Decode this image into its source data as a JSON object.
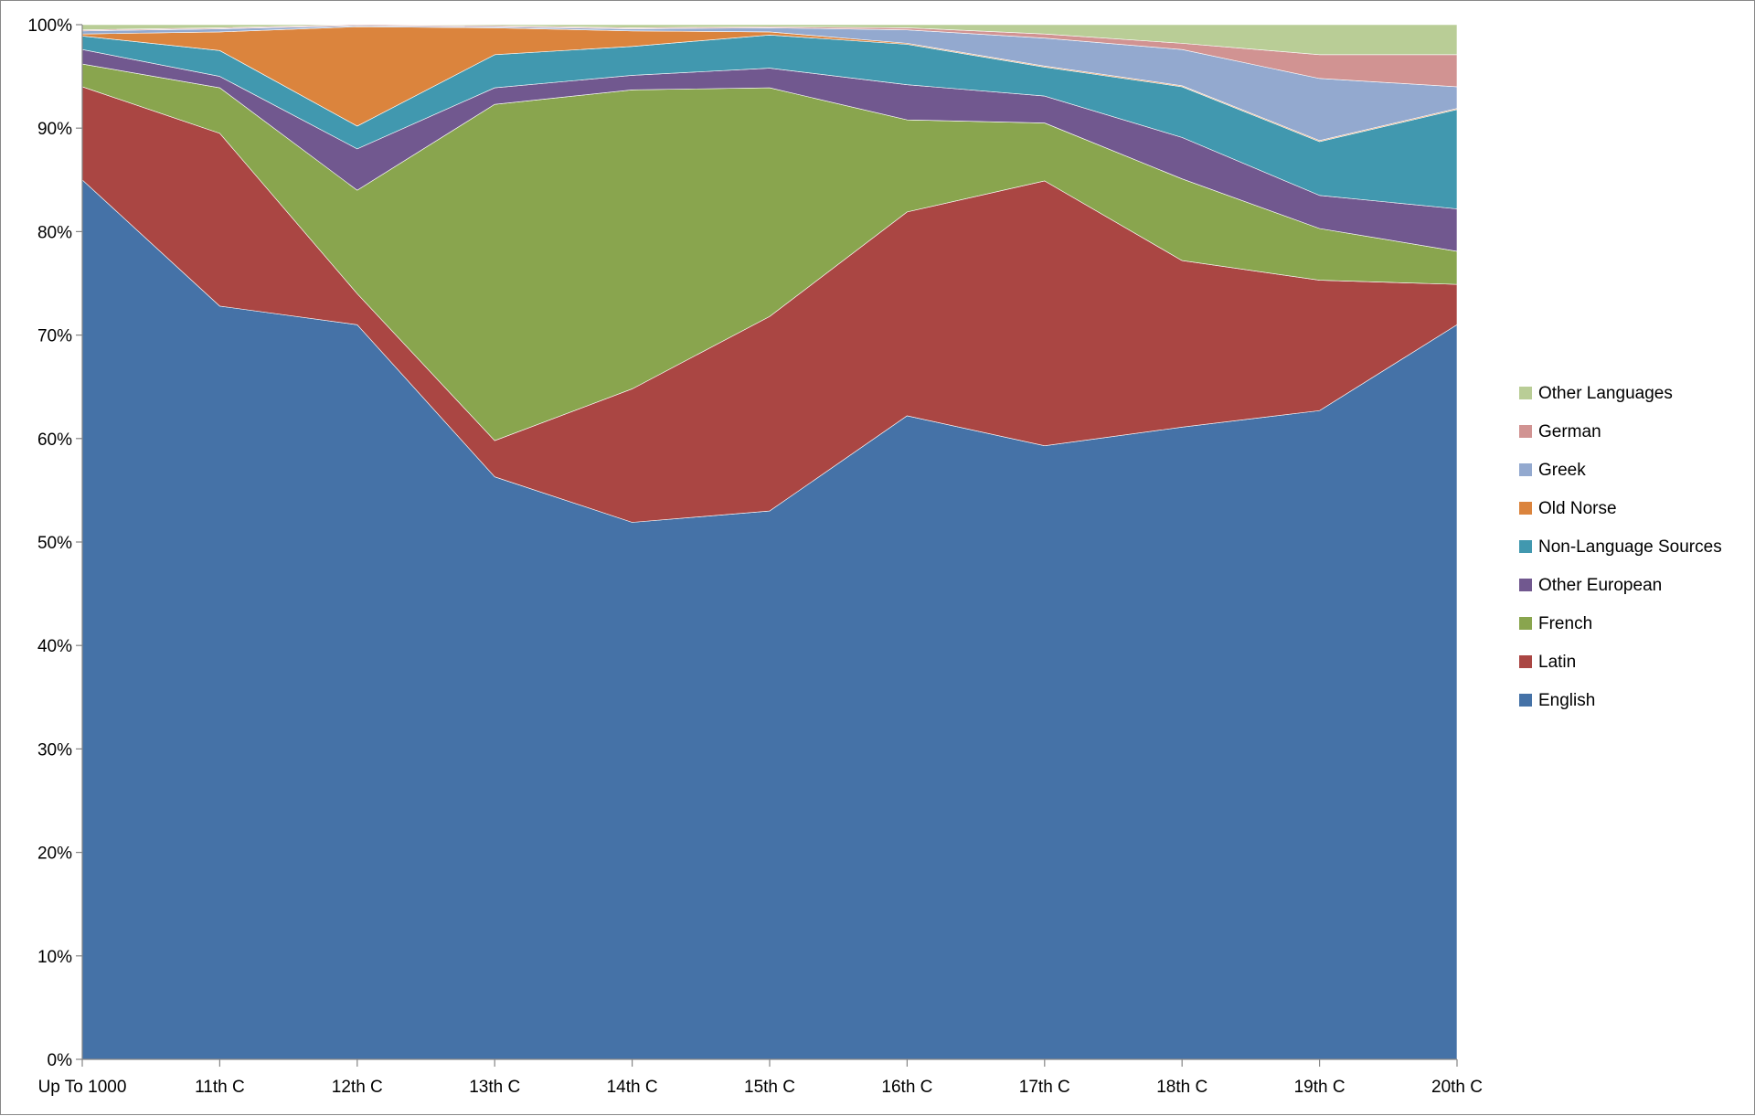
{
  "chart_data": {
    "type": "area",
    "stacked": "percent",
    "title": "",
    "xlabel": "",
    "ylabel": "",
    "ylim": [
      0,
      100
    ],
    "y_ticks": [
      "0%",
      "10%",
      "20%",
      "30%",
      "40%",
      "50%",
      "60%",
      "70%",
      "80%",
      "90%",
      "100%"
    ],
    "grid": false,
    "legend_position": "right",
    "categories": [
      "Up To 1000",
      "11th C",
      "12th C",
      "13th C",
      "14th C",
      "15th C",
      "16th C",
      "17th C",
      "18th C",
      "19th C",
      "20th C"
    ],
    "series": [
      {
        "name": "English",
        "color": "#4572A7",
        "values": [
          85.0,
          72.8,
          71.0,
          56.3,
          51.9,
          53.0,
          62.2,
          59.3,
          61.1,
          62.7,
          71.0
        ]
      },
      {
        "name": "Latin",
        "color": "#AA4643",
        "values": [
          9.0,
          16.7,
          3.0,
          3.5,
          12.9,
          18.8,
          19.7,
          25.6,
          16.1,
          12.6,
          3.9
        ]
      },
      {
        "name": "French",
        "color": "#89A54E",
        "values": [
          2.2,
          4.4,
          10.0,
          32.5,
          28.9,
          22.1,
          8.9,
          5.6,
          7.9,
          5.0,
          3.2
        ]
      },
      {
        "name": "Other European",
        "color": "#71588F",
        "values": [
          1.4,
          1.1,
          4.0,
          1.6,
          1.4,
          1.9,
          3.4,
          2.6,
          4.0,
          3.2,
          4.1
        ]
      },
      {
        "name": "Non-Language Sources",
        "color": "#4198AF",
        "values": [
          1.3,
          2.5,
          2.2,
          3.2,
          2.8,
          3.2,
          3.9,
          2.8,
          4.9,
          5.2,
          9.6
        ]
      },
      {
        "name": "Old Norse",
        "color": "#DB843D",
        "values": [
          0.2,
          1.8,
          9.6,
          2.6,
          1.5,
          0.3,
          0.1,
          0.1,
          0.1,
          0.1,
          0.1
        ]
      },
      {
        "name": "Greek",
        "color": "#93A9CF",
        "values": [
          0.3,
          0.3,
          0.1,
          0.1,
          0.2,
          0.4,
          1.3,
          2.7,
          3.5,
          6.0,
          2.1
        ]
      },
      {
        "name": "German",
        "color": "#D19392",
        "values": [
          0.1,
          0.1,
          0.1,
          0.1,
          0.1,
          0.1,
          0.2,
          0.4,
          0.6,
          2.3,
          3.1
        ]
      },
      {
        "name": "Other Languages",
        "color": "#B9CD96",
        "values": [
          0.5,
          0.3,
          0.0,
          0.1,
          0.3,
          0.2,
          0.3,
          0.9,
          1.8,
          2.9,
          2.9
        ]
      }
    ]
  }
}
